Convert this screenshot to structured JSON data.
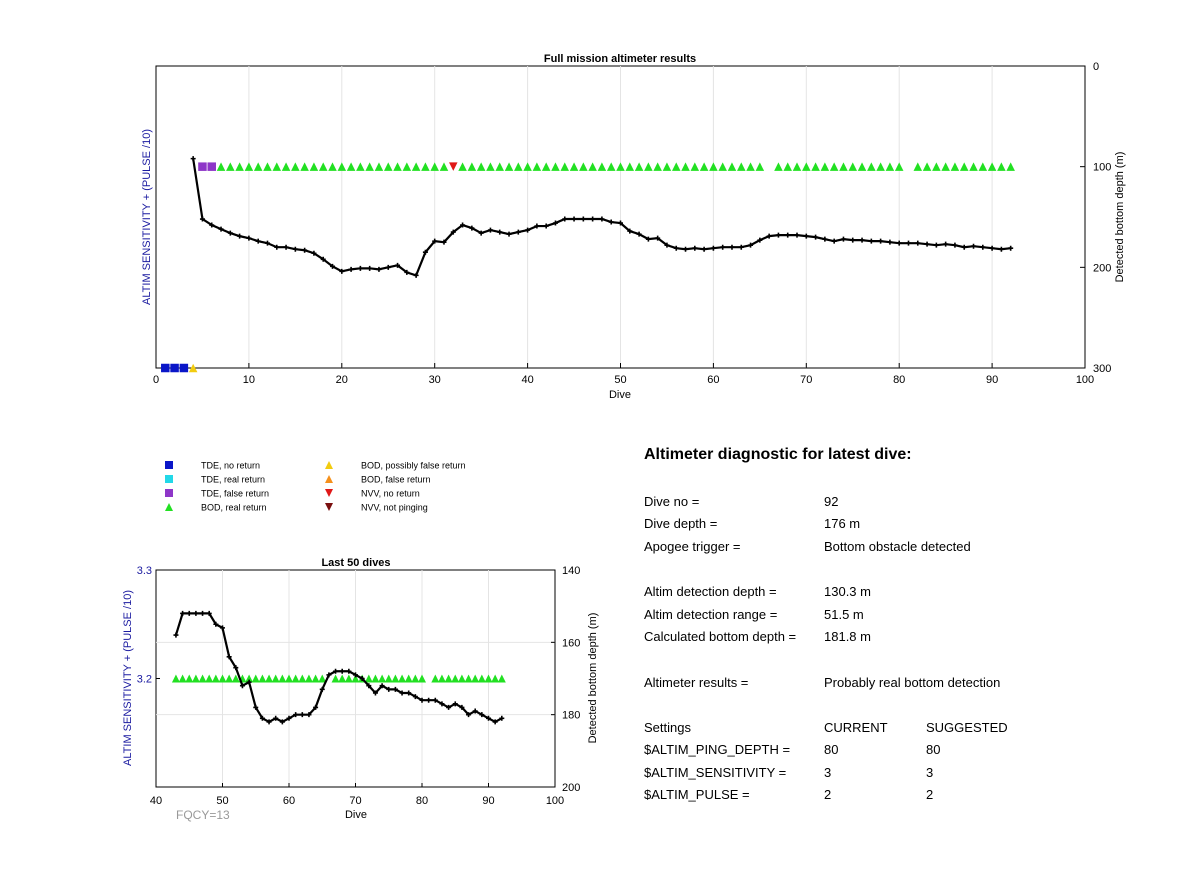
{
  "colors": {
    "tde_no_return": "#0a16c8",
    "tde_real_return": "#22d8e8",
    "tde_false_return": "#8e36c8",
    "bod_real_return": "#22e022",
    "bod_possibly_false": "#f2cc10",
    "bod_false_return": "#f5901c",
    "nvv_no_return": "#e01818",
    "nvv_not_pinging": "#7a1010",
    "left_axis_label": "#1a1aa0",
    "fqcy": "#999999"
  },
  "legend": [
    {
      "label": "TDE, no return",
      "marker": "square",
      "color_key": "tde_no_return"
    },
    {
      "label": "TDE, real return",
      "marker": "square",
      "color_key": "tde_real_return"
    },
    {
      "label": "TDE, false return",
      "marker": "square",
      "color_key": "tde_false_return"
    },
    {
      "label": "BOD, real return",
      "marker": "triangle-up",
      "color_key": "bod_real_return"
    },
    {
      "label": "BOD, possibly false return",
      "marker": "triangle-up",
      "color_key": "bod_possibly_false"
    },
    {
      "label": "BOD, false return",
      "marker": "triangle-up",
      "color_key": "bod_false_return"
    },
    {
      "label": "NVV, no return",
      "marker": "triangle-down",
      "color_key": "nvv_no_return"
    },
    {
      "label": "NVV, not pinging",
      "marker": "triangle-down",
      "color_key": "nvv_not_pinging"
    }
  ],
  "chart_data": [
    {
      "type": "line",
      "title": "Full mission altimeter results",
      "xlabel": "Dive",
      "ylabel_left": "ALTIM SENSITIVITY + (PULSE /10)",
      "ylabel_right": "Detected bottom depth (m)",
      "xlim": [
        0,
        100
      ],
      "ylim_right": [
        0,
        300
      ],
      "y_right_reversed": true,
      "xticks": [
        0,
        10,
        20,
        30,
        40,
        50,
        60,
        70,
        80,
        90,
        100
      ],
      "yticks_right": [
        0,
        100,
        200,
        300
      ],
      "grid": "x-only",
      "series": [
        {
          "name": "Detected bottom depth",
          "x": [
            4,
            5,
            6,
            7,
            8,
            9,
            10,
            11,
            12,
            13,
            14,
            15,
            16,
            17,
            18,
            19,
            20,
            21,
            22,
            23,
            24,
            25,
            26,
            27,
            28,
            29,
            30,
            31,
            32,
            33,
            34,
            35,
            36,
            37,
            38,
            39,
            40,
            41,
            42,
            43,
            44,
            45,
            46,
            47,
            48,
            49,
            50,
            51,
            52,
            53,
            54,
            55,
            56,
            57,
            58,
            59,
            60,
            61,
            62,
            63,
            64,
            65,
            66,
            67,
            68,
            69,
            70,
            71,
            72,
            73,
            74,
            75,
            76,
            77,
            78,
            79,
            80,
            81,
            82,
            83,
            84,
            85,
            86,
            87,
            88,
            89,
            90,
            91,
            92
          ],
          "y": [
            92,
            152,
            158,
            162,
            166,
            169,
            171,
            174,
            176,
            180,
            180,
            182,
            183,
            186,
            192,
            199,
            204,
            202,
            201,
            201,
            202,
            200,
            198,
            205,
            208,
            185,
            174,
            175,
            165,
            158,
            161,
            166,
            163,
            165,
            167,
            165,
            163,
            159,
            159,
            156,
            152,
            152,
            152,
            152,
            152,
            155,
            156,
            164,
            167,
            172,
            171,
            178,
            181,
            182,
            181,
            182,
            181,
            180,
            180,
            180,
            178,
            173,
            169,
            168,
            168,
            168,
            169,
            170,
            172,
            174,
            172,
            173,
            173,
            174,
            174,
            175,
            176,
            176,
            176,
            177,
            178,
            177,
            178,
            180,
            179,
            180,
            181,
            182,
            181
          ]
        },
        {
          "name": "TDE, no return",
          "x": [
            1,
            2,
            3
          ],
          "y": [
            300,
            300,
            300
          ]
        },
        {
          "name": "BOD, possibly false return",
          "x": [
            4
          ],
          "y": [
            300
          ]
        },
        {
          "name": "TDE, false return",
          "x": [
            5,
            6
          ],
          "y": [
            100,
            100
          ]
        },
        {
          "name": "NVV, no return",
          "x": [
            32
          ],
          "y": [
            100
          ]
        },
        {
          "name": "BOD, real return",
          "x_ranges": [
            [
              7,
              31
            ],
            [
              33,
              65
            ],
            [
              67,
              80
            ],
            [
              82,
              92
            ]
          ],
          "y": 100
        }
      ]
    },
    {
      "type": "line",
      "title": "Last 50 dives",
      "xlabel": "Dive",
      "ylabel_left": "ALTIM SENSITIVITY + (PULSE /10)",
      "ylabel_right": "Detected bottom depth (m)",
      "xlim": [
        40,
        100
      ],
      "ylim_left": [
        3.1,
        3.3
      ],
      "ylim_right": [
        140,
        200
      ],
      "y_right_reversed": true,
      "xticks": [
        40,
        50,
        60,
        70,
        80,
        90,
        100
      ],
      "yticks_left": [
        "3.3",
        "3.2"
      ],
      "yticks_right": [
        140,
        160,
        180,
        200
      ],
      "grid": "both",
      "annotation": "FQCY=13",
      "series": [
        {
          "name": "Detected bottom depth",
          "x": [
            43,
            44,
            45,
            46,
            47,
            48,
            49,
            50,
            51,
            52,
            53,
            54,
            55,
            56,
            57,
            58,
            59,
            60,
            61,
            62,
            63,
            64,
            65,
            66,
            67,
            68,
            69,
            70,
            71,
            72,
            73,
            74,
            75,
            76,
            77,
            78,
            79,
            80,
            81,
            82,
            83,
            84,
            85,
            86,
            87,
            88,
            89,
            90,
            91,
            92
          ],
          "y": [
            158,
            152,
            152,
            152,
            152,
            152,
            155,
            156,
            164,
            167,
            172,
            171,
            178,
            181,
            182,
            181,
            182,
            181,
            180,
            180,
            180,
            178,
            173,
            169,
            168,
            168,
            168,
            169,
            170,
            172,
            174,
            172,
            173,
            173,
            174,
            174,
            175,
            176,
            176,
            176,
            177,
            178,
            177,
            178,
            180,
            179,
            180,
            181,
            182,
            181
          ]
        },
        {
          "name": "BOD, real return",
          "x_ranges": [
            [
              43,
              65
            ],
            [
              67,
              80
            ],
            [
              82,
              92
            ]
          ],
          "y": 3.2
        }
      ]
    }
  ],
  "diagnostic": {
    "title": "Altimeter diagnostic for latest dive:",
    "rows": [
      {
        "label": "Dive no =",
        "value": "92"
      },
      {
        "label": "Dive depth =",
        "value": "176 m"
      },
      {
        "label": "Apogee trigger =",
        "value": "Bottom obstacle detected"
      },
      {
        "label": "Altim detection depth =",
        "value": "130.3 m"
      },
      {
        "label": "Altim detection range =",
        "value": "51.5 m"
      },
      {
        "label": "Calculated bottom depth =",
        "value": "181.8 m"
      },
      {
        "label": "Altimeter results =",
        "value": "Probably real bottom detection"
      }
    ],
    "settings_header": {
      "label": "Settings",
      "current": "CURRENT",
      "suggested": "SUGGESTED"
    },
    "settings": [
      {
        "label": "$ALTIM_PING_DEPTH =",
        "current": "80",
        "suggested": "80"
      },
      {
        "label": "$ALTIM_SENSITIVITY =",
        "current": "3",
        "suggested": "3"
      },
      {
        "label": "$ALTIM_PULSE =",
        "current": "2",
        "suggested": "2"
      }
    ]
  }
}
